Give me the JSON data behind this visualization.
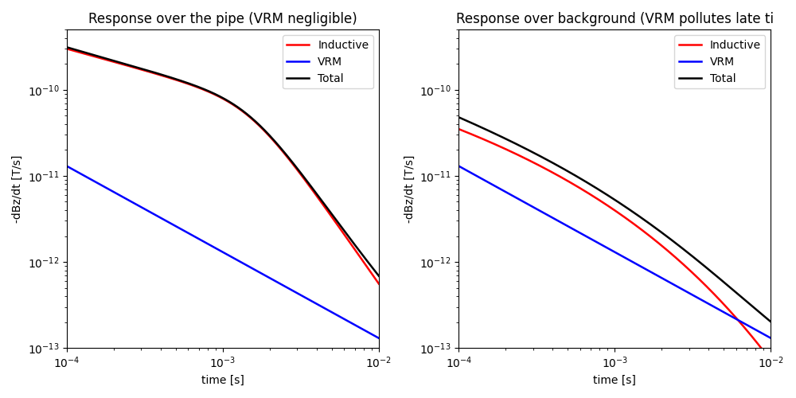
{
  "title_left": "Response over the pipe (VRM negligible)",
  "title_right": "Response over background (VRM pollutes late ti",
  "xlabel": "time [s]",
  "ylabel": "-dBz/dt [T/s]",
  "xmin": 0.0001,
  "xmax": 0.01,
  "legend_labels": [
    "Inductive",
    "VRM",
    "Total"
  ],
  "left_ylim": [
    1e-13,
    5e-10
  ],
  "right_ylim": [
    1e-13,
    5e-10
  ],
  "linewidth": 1.8,
  "figsize": [
    10.0,
    5.0
  ],
  "dpi": 100
}
